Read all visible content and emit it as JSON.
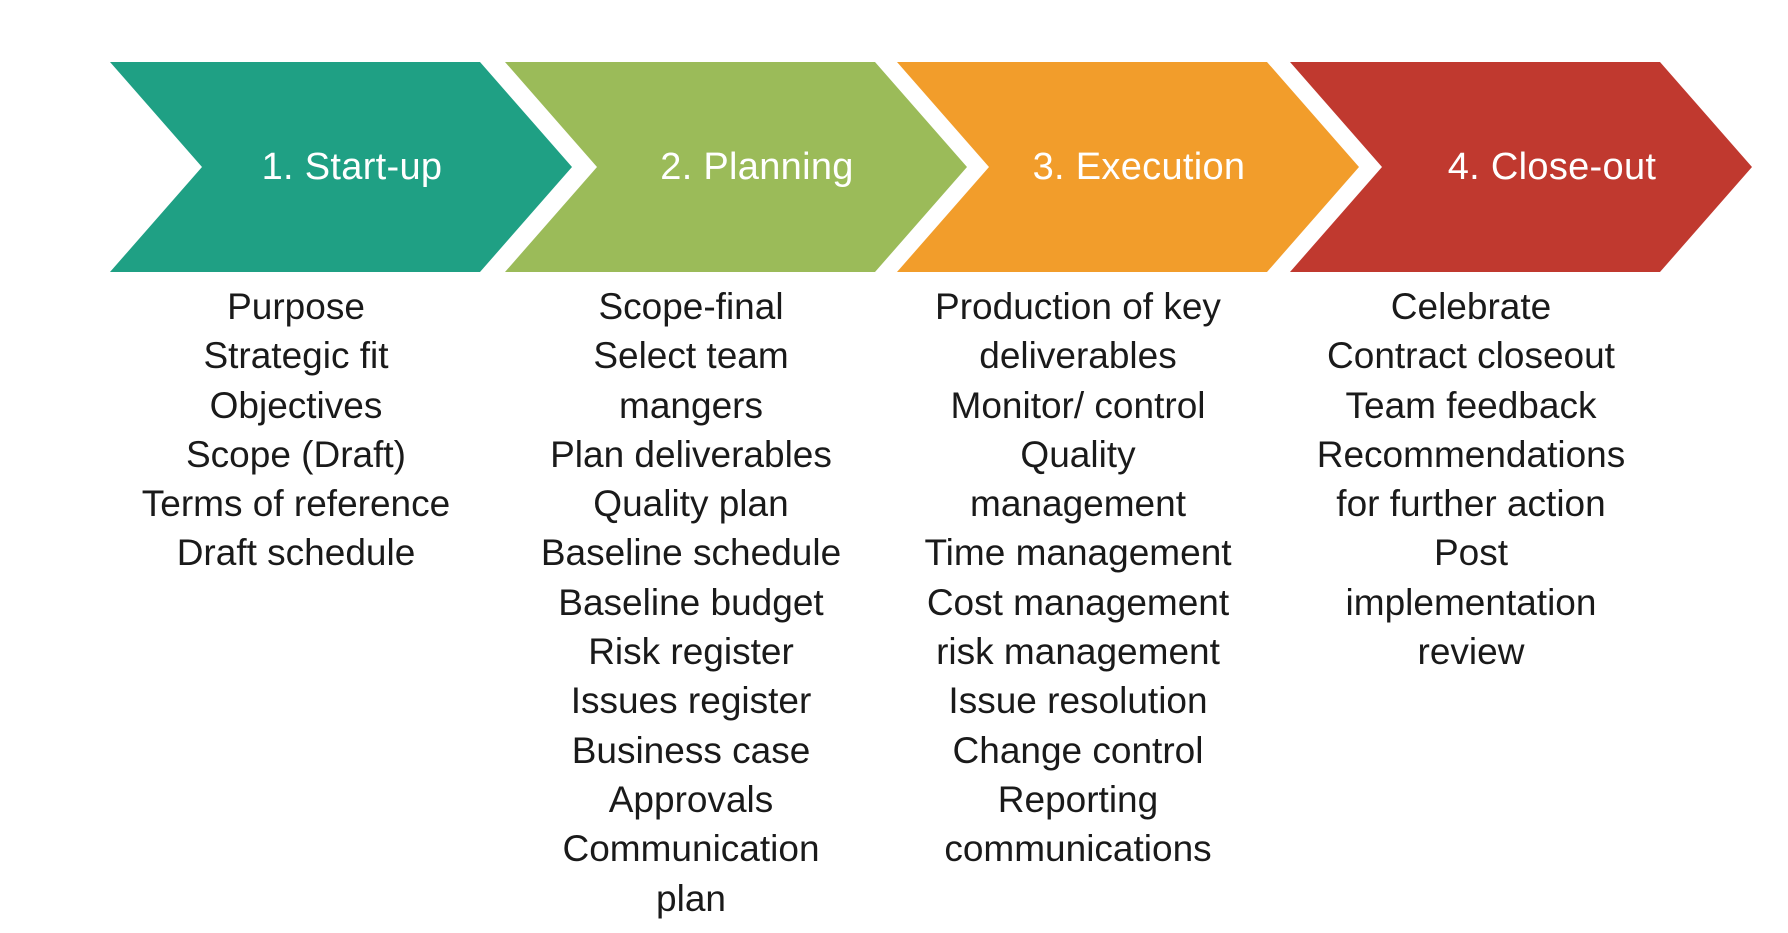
{
  "phases": [
    {
      "title": "1. Start-up",
      "color": "#1fa084",
      "lines": [
        "Purpose",
        "Strategic fit",
        "Objectives",
        "Scope (Draft)",
        "Terms of reference",
        "Draft schedule"
      ]
    },
    {
      "title": "2. Planning",
      "color": "#9bbb59",
      "lines": [
        "Scope-final",
        "Select team",
        "mangers",
        "Plan deliverables",
        "Quality plan",
        "Baseline schedule",
        "Baseline budget",
        "Risk register",
        "Issues register",
        "Business case",
        "Approvals",
        "Communication",
        "plan"
      ]
    },
    {
      "title": "3. Execution",
      "color": "#f29d2b",
      "lines": [
        "Production of key",
        "deliverables",
        "Monitor/ control",
        "Quality",
        "management",
        "Time management",
        "Cost management",
        "risk management",
        "Issue resolution",
        "Change control",
        "Reporting",
        "communications"
      ]
    },
    {
      "title": "4. Close-out",
      "color": "#c0392f",
      "lines": [
        "Celebrate",
        "Contract closeout",
        "Team feedback",
        "Recommendations",
        "for further action",
        "Post",
        "implementation",
        "review"
      ]
    }
  ]
}
